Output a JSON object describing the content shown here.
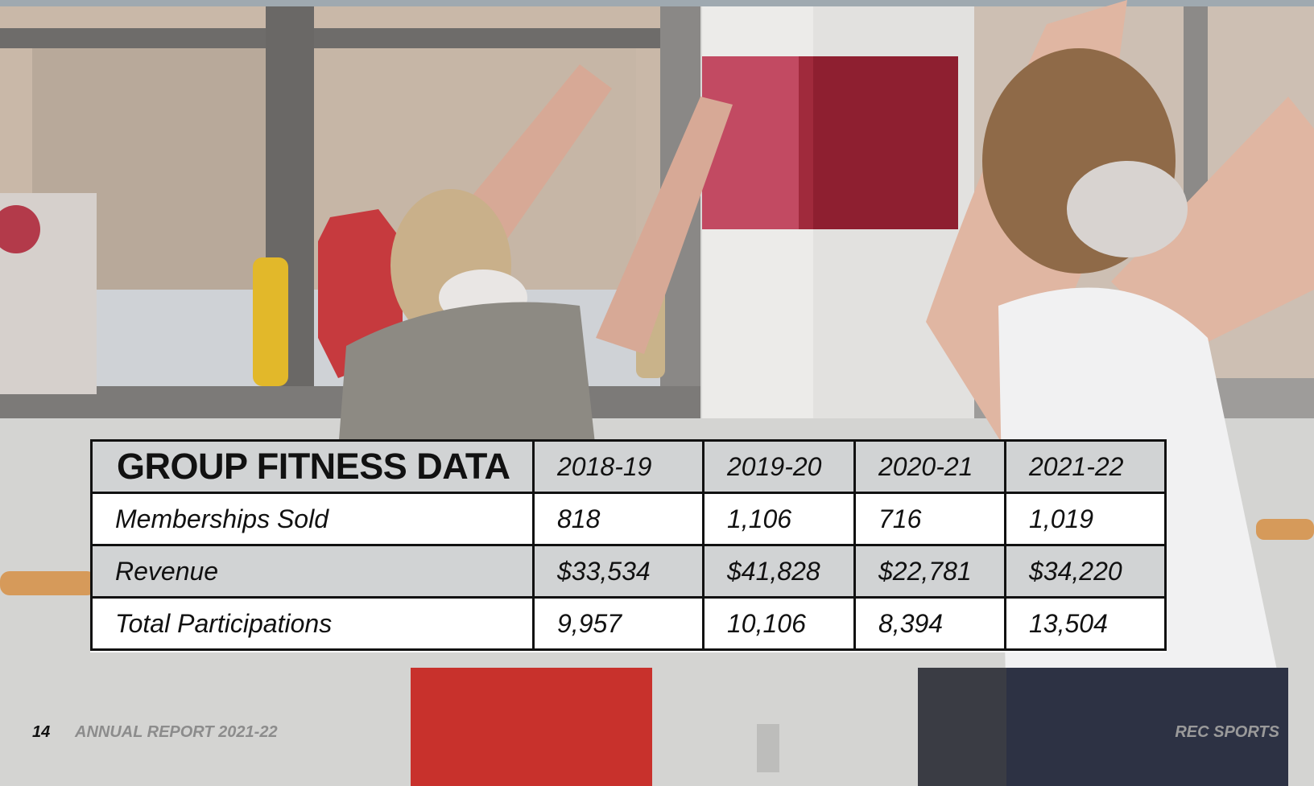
{
  "table": {
    "title": "GROUP FITNESS DATA",
    "columns": [
      "2018-19",
      "2019-20",
      "2020-21",
      "2021-22"
    ],
    "rows": [
      [
        "Memberships Sold",
        "818",
        "1,106",
        "716",
        "1,019"
      ],
      [
        "Revenue",
        "$33,534",
        "$41,828",
        "$22,781",
        "$34,220"
      ],
      [
        "Total Participations",
        "9,957",
        "10,106",
        "8,394",
        "13,504"
      ]
    ]
  },
  "footer": {
    "page_number": "14",
    "report": "ANNUAL REPORT 2021-22",
    "organization": "REC SPORTS"
  }
}
